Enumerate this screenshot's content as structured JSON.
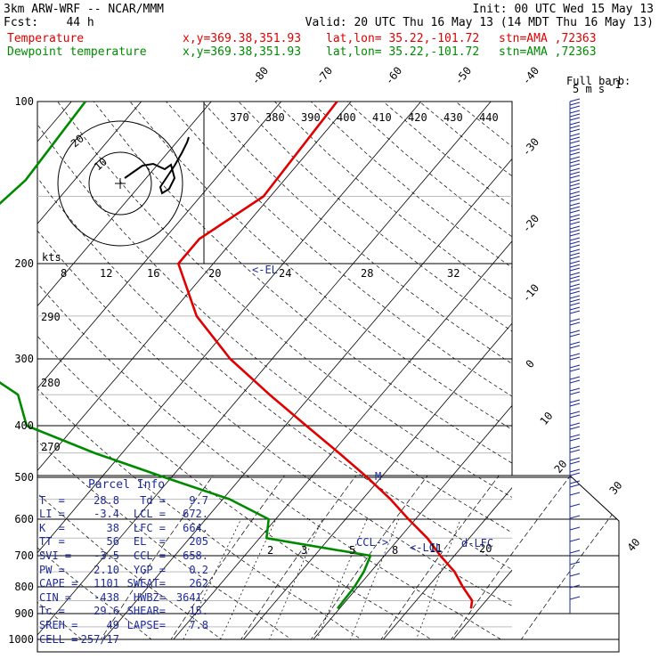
{
  "header": {
    "line1_left": "3km ARW-WRF -- NCAR/MMM",
    "line1_right": "Init: 00 UTC Wed 15 May 13",
    "line2_left": "Fcst:    44 h",
    "line2_right": "Valid: 20 UTC Thu 16 May 13 (14 MDT Thu 16 May 13)",
    "series": [
      {
        "name": "Temperature",
        "color": "#e00000",
        "xy": "x,y=369.38,351.93",
        "latlon": "lat,lon= 35.22,-101.72",
        "stn": "stn=AMA ,72363"
      },
      {
        "name": "Dewpoint temperature",
        "color": "#008a00",
        "xy": "x,y=369.38,351.93",
        "latlon": "lat,lon= 35.22,-101.72",
        "stn": "stn=AMA ,72363"
      }
    ]
  },
  "barb_legend": {
    "title": "Full barb:",
    "value": "5 m s",
    "exp": "-1"
  },
  "chart_data": {
    "type": "line",
    "subtype": "skew-T log-p",
    "pressure_levels": [
      100,
      200,
      300,
      400,
      500,
      600,
      700,
      800,
      900,
      1000
    ],
    "isotherm_labels": [
      -80,
      -70,
      -60,
      -50,
      -40,
      -30,
      -20,
      -10,
      0,
      10,
      20,
      30,
      40
    ],
    "theta_labels": [
      370,
      380,
      390,
      400,
      410,
      420,
      430,
      440
    ],
    "theta_side_labels": [
      290,
      280,
      270
    ],
    "mixing_ratio_labels": [
      "2",
      "3",
      "5",
      "8",
      "11",
      "20"
    ],
    "hodograph_labels": [
      "kts",
      "8",
      "12",
      "16",
      "20",
      "24",
      "28",
      "32"
    ],
    "hodograph_ring_labels": [
      "10",
      "20"
    ],
    "level_markers": [
      {
        "label": "<-EL",
        "p": 205
      },
      {
        "label": "CCL->",
        "p": 658
      },
      {
        "label": "<-LCL",
        "p": 672
      },
      {
        "label": "d-LFC",
        "p": 664
      },
      {
        "label": "M",
        "p": 497
      }
    ],
    "series": [
      {
        "name": "Temperature",
        "color": "#e00000",
        "points": [
          [
            100,
            -52
          ],
          [
            150,
            -51
          ],
          [
            180,
            -55
          ],
          [
            200,
            -55
          ],
          [
            250,
            -46
          ],
          [
            300,
            -36
          ],
          [
            350,
            -26
          ],
          [
            400,
            -17
          ],
          [
            450,
            -9
          ],
          [
            500,
            -2
          ],
          [
            550,
            4
          ],
          [
            600,
            9
          ],
          [
            650,
            14
          ],
          [
            700,
            18
          ],
          [
            750,
            22
          ],
          [
            800,
            25
          ],
          [
            850,
            28
          ],
          [
            880,
            28.8
          ]
        ]
      },
      {
        "name": "Dewpoint temperature",
        "color": "#008a00",
        "points": [
          [
            100,
            -88
          ],
          [
            140,
            -87
          ],
          [
            200,
            -90
          ],
          [
            250,
            -85
          ],
          [
            300,
            -74
          ],
          [
            350,
            -62
          ],
          [
            400,
            -57
          ],
          [
            450,
            -44
          ],
          [
            500,
            -31
          ],
          [
            550,
            -19
          ],
          [
            600,
            -11
          ],
          [
            650,
            -9
          ],
          [
            700,
            8
          ],
          [
            750,
            9
          ],
          [
            800,
            9.5
          ],
          [
            880,
            9.7
          ]
        ]
      }
    ]
  },
  "parcel_info": {
    "title": "Parcel Info",
    "rows": [
      [
        "T  =",
        "28.8",
        "Td =",
        "9.7"
      ],
      [
        "LI =",
        "-3.4",
        "LCL =",
        "672."
      ],
      [
        "K  =",
        "38",
        "LFC =",
        "664."
      ],
      [
        "TT =",
        "56",
        "EL  =",
        "205"
      ],
      [
        "SVI =",
        "-3.5",
        "CCL =",
        "658."
      ],
      [
        "PW =",
        "2.10",
        "YGP =",
        "0.2"
      ],
      [
        "CAPE =",
        "1101",
        "SWEAT=",
        "262"
      ],
      [
        "CIN =",
        "-438",
        "HWBZ=",
        "3641."
      ],
      [
        "Tc =",
        "29.6",
        "SHEAR=",
        "15."
      ],
      [
        "SREH =",
        "49",
        "LAPSE=",
        "7.8"
      ],
      [
        "CELL =",
        "257/17",
        "",
        ""
      ]
    ]
  }
}
